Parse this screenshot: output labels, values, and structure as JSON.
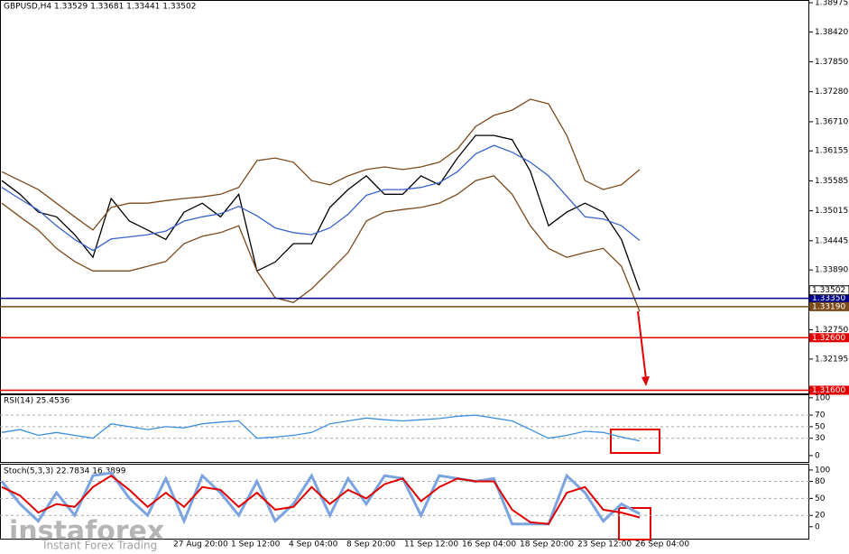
{
  "chart_data": [
    {
      "type": "line",
      "title": "GBPUSD,H4  1.33529 1.33681 1.33441 1.33502",
      "ylim": [
        1.3154,
        1.39027
      ],
      "yticks": [
        1.38975,
        {
          "value": 1.3842,
          "label": "1.38420"
        },
        {
          "value": 1.3785,
          "label": "1.37850"
        },
        {
          "value": 1.3728,
          "label": "1.37280"
        },
        {
          "value": 1.3671,
          "label": "1.36710"
        },
        1.36155,
        1.35585,
        1.35015,
        1.34445,
        {
          "value": 1.3389,
          "label": "1.33890"
        },
        {
          "value": 1.3275,
          "label": "1.32750"
        },
        1.32195
      ],
      "series": [
        {
          "name": "GBPUSD",
          "color": "#000000",
          "values": [
            1.3559,
            1.3533,
            1.3499,
            1.349,
            1.3456,
            1.3413,
            1.3525,
            1.3482,
            1.3465,
            1.3447,
            1.3499,
            1.3516,
            1.349,
            1.3533,
            1.3387,
            1.3404,
            1.3439,
            1.3439,
            1.3508,
            1.3542,
            1.3568,
            1.3533,
            1.3533,
            1.3568,
            1.3551,
            1.3602,
            1.3645,
            1.3645,
            1.3637,
            1.3577,
            1.3473,
            1.3499,
            1.3516,
            1.3499,
            1.3447,
            1.335
          ]
        },
        {
          "name": "Upper band",
          "color": "#7b4a1c",
          "values": [
            1.3576,
            1.3559,
            1.3542,
            1.3516,
            1.349,
            1.3465,
            1.3508,
            1.3516,
            1.3516,
            1.3521,
            1.3525,
            1.3528,
            1.3533,
            1.3546,
            1.3597,
            1.3602,
            1.3594,
            1.3559,
            1.3551,
            1.3568,
            1.358,
            1.3585,
            1.358,
            1.3585,
            1.3594,
            1.3619,
            1.3662,
            1.3683,
            1.3693,
            1.3714,
            1.3705,
            1.3645,
            1.3559,
            1.3542,
            1.3551,
            1.358
          ]
        },
        {
          "name": "Lower band",
          "color": "#7b4a1c",
          "values": [
            1.3516,
            1.349,
            1.3465,
            1.343,
            1.3405,
            1.3387,
            1.3387,
            1.3387,
            1.3396,
            1.3405,
            1.3439,
            1.3453,
            1.346,
            1.3473,
            1.3387,
            1.3336,
            1.3327,
            1.3353,
            1.3387,
            1.3422,
            1.3482,
            1.3499,
            1.3504,
            1.3508,
            1.3516,
            1.3533,
            1.3559,
            1.3568,
            1.3533,
            1.3473,
            1.343,
            1.3413,
            1.3422,
            1.343,
            1.3396,
            1.331
          ]
        },
        {
          "name": "MA",
          "color": "#3a62c8",
          "values": [
            1.3546,
            1.3524,
            1.3503,
            1.3473,
            1.3447,
            1.3426,
            1.3448,
            1.3452,
            1.3456,
            1.3463,
            1.3482,
            1.349,
            1.3496,
            1.351,
            1.3492,
            1.3469,
            1.346,
            1.3456,
            1.3469,
            1.3495,
            1.3531,
            1.3542,
            1.3542,
            1.3546,
            1.3555,
            1.3576,
            1.361,
            1.3626,
            1.3613,
            1.3594,
            1.3568,
            1.3529,
            1.349,
            1.3486,
            1.3473,
            1.3445
          ]
        }
      ],
      "levels": [
        {
          "value": 1.3335,
          "label": "1.33350",
          "color": "#00008b"
        },
        {
          "value": 1.3319,
          "label": "1.33190",
          "color": "#7b4a1c"
        },
        {
          "value": 1.326,
          "label": "1.32600",
          "color": "#e00000"
        },
        {
          "value": 1.316,
          "label": "1.31600",
          "color": "#e00000"
        }
      ],
      "last_price": 1.33502
    },
    {
      "type": "line",
      "title": "RSI(14) 25.4536",
      "ylim": [
        -11,
        106
      ],
      "yticks": [
        100,
        70,
        50,
        30,
        0
      ],
      "series": [
        {
          "name": "RSI",
          "color": "#3c8fdc",
          "values": [
            40,
            45,
            35,
            40,
            35,
            30,
            55,
            50,
            45,
            50,
            48,
            55,
            58,
            60,
            30,
            32,
            35,
            40,
            55,
            60,
            65,
            62,
            60,
            62,
            64,
            68,
            70,
            65,
            60,
            45,
            30,
            35,
            42,
            40,
            32,
            25.4536
          ]
        }
      ]
    },
    {
      "type": "line",
      "title": "Stoch(5,3,3) 22.7834 16.3899",
      "ylim": [
        -21,
        111
      ],
      "yticks": [
        100,
        80,
        50,
        20,
        0
      ],
      "series": [
        {
          "name": "%K",
          "color": "#7aa3e0",
          "values": [
            80,
            40,
            10,
            60,
            20,
            90,
            95,
            50,
            20,
            85,
            10,
            90,
            60,
            20,
            80,
            10,
            40,
            90,
            20,
            85,
            40,
            90,
            85,
            20,
            90,
            85,
            80,
            85,
            5,
            5,
            5,
            90,
            60,
            10,
            40,
            22.7834
          ]
        },
        {
          "name": "%D",
          "color": "#e00000",
          "values": [
            70,
            55,
            25,
            40,
            35,
            70,
            90,
            65,
            35,
            60,
            35,
            70,
            65,
            35,
            60,
            30,
            35,
            70,
            40,
            65,
            50,
            75,
            85,
            45,
            70,
            85,
            80,
            80,
            30,
            8,
            5,
            60,
            70,
            30,
            25,
            16.3899
          ]
        }
      ],
      "x_axis_labels": [
        "27 Aug 20:00",
        "1 Sep 12:00",
        "4 Sep 04:00",
        "8 Sep 20:00",
        "11 Sep 12:00",
        "16 Sep 04:00",
        "18 Sep 20:00",
        "23 Sep 12:00",
        "26 Sep 04:00"
      ]
    }
  ],
  "watermark": {
    "brand": "instaforex",
    "slogan": "Instant Forex Trading"
  }
}
